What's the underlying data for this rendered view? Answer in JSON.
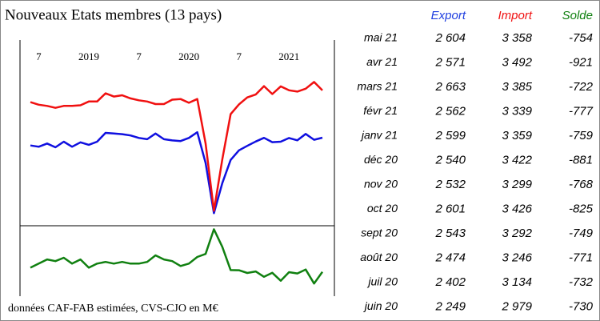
{
  "title": "Nouveaux Etats membres (13 pays)",
  "note": "données CAF-FAB estimées, CVS-CJO en M€",
  "chart_data": [
    {
      "type": "line",
      "categories": [
        null,
        "7",
        null,
        null,
        null,
        null,
        null,
        "2019",
        null,
        null,
        null,
        null,
        null,
        "7",
        null,
        null,
        null,
        null,
        null,
        "2020",
        null,
        null,
        null,
        null,
        null,
        "7",
        null,
        null,
        null,
        null,
        null,
        "2021",
        null,
        null,
        null,
        null
      ],
      "series": [
        {
          "name": "Export",
          "color": "#1010e0",
          "values": [
            2480,
            2460,
            2510,
            2450,
            2540,
            2460,
            2530,
            2490,
            2540,
            2680,
            2670,
            2660,
            2640,
            2600,
            2580,
            2670,
            2580,
            2560,
            2550,
            2600,
            2690,
            2200,
            1400,
            1880,
            2249,
            2402,
            2474,
            2543,
            2601,
            2532,
            2540,
            2599,
            2562,
            2663,
            2571,
            2604
          ]
        },
        {
          "name": "Import",
          "color": "#f01010",
          "values": [
            3170,
            3130,
            3110,
            3080,
            3110,
            3110,
            3120,
            3180,
            3180,
            3310,
            3260,
            3280,
            3230,
            3200,
            3180,
            3140,
            3140,
            3210,
            3220,
            3160,
            3220,
            2510,
            1440,
            2260,
            2979,
            3134,
            3246,
            3292,
            3426,
            3299,
            3422,
            3359,
            3339,
            3385,
            3492,
            3358
          ]
        }
      ],
      "ylim": [
        1200,
        3650
      ]
    },
    {
      "type": "line",
      "series": [
        {
          "name": "Solde",
          "color": "#108010",
          "values": [
            -696,
            -637,
            -578,
            -602,
            -555,
            -637,
            -578,
            -696,
            -637,
            -614,
            -637,
            -614,
            -637,
            -637,
            -614,
            -520,
            -578,
            -602,
            -672,
            -637,
            -543,
            -500,
            -150,
            -400,
            -730,
            -732,
            -771,
            -749,
            -825,
            -768,
            -881,
            -759,
            -777,
            -722,
            -921,
            -754
          ]
        }
      ],
      "ylim": [
        -1100,
        -100
      ]
    }
  ],
  "table": {
    "columns": [
      {
        "label": "Export",
        "color": "#1f3fe0"
      },
      {
        "label": "Import",
        "color": "#f01010"
      },
      {
        "label": "Solde",
        "color": "#108010"
      }
    ],
    "rows": [
      [
        "mai 21",
        "2 604",
        "3 358",
        "-754"
      ],
      [
        "avr 21",
        "2 571",
        "3 492",
        "-921"
      ],
      [
        "mars 21",
        "2 663",
        "3 385",
        "-722"
      ],
      [
        "févr 21",
        "2 562",
        "3 339",
        "-777"
      ],
      [
        "janv 21",
        "2 599",
        "3 359",
        "-759"
      ],
      [
        "déc 20",
        "2 540",
        "3 422",
        "-881"
      ],
      [
        "nov 20",
        "2 532",
        "3 299",
        "-768"
      ],
      [
        "oct 20",
        "2 601",
        "3 426",
        "-825"
      ],
      [
        "sept 20",
        "2 543",
        "3 292",
        "-749"
      ],
      [
        "août 20",
        "2 474",
        "3 246",
        "-771"
      ],
      [
        "juil 20",
        "2 402",
        "3 134",
        "-732"
      ],
      [
        "juin 20",
        "2 249",
        "2 979",
        "-730"
      ]
    ]
  }
}
